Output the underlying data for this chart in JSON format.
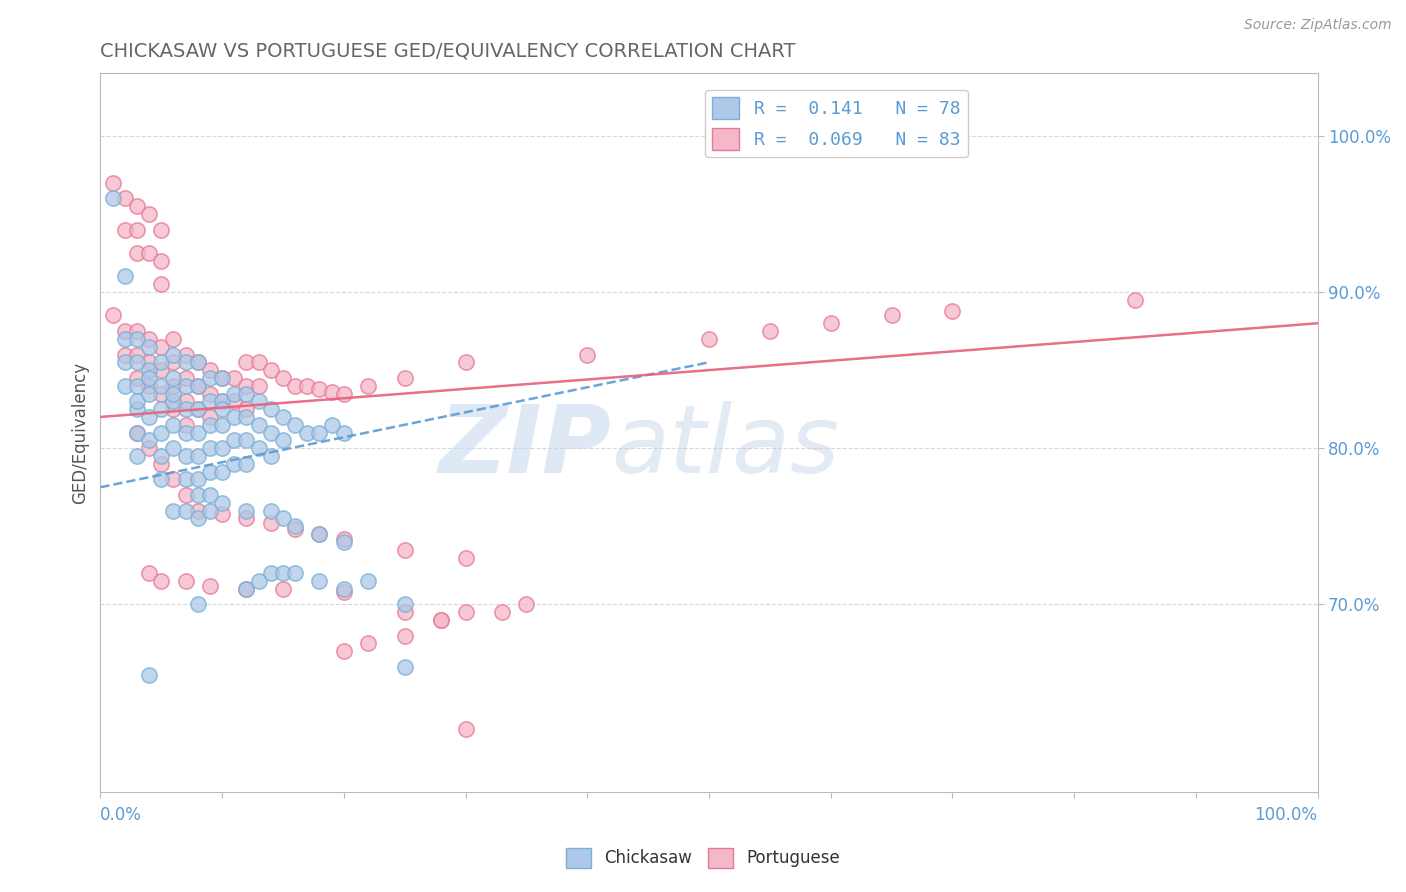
{
  "title": "CHICKASAW VS PORTUGUESE GED/EQUIVALENCY CORRELATION CHART",
  "source": "Source: ZipAtlas.com",
  "ylabel": "GED/Equivalency",
  "ytick_labels_right": [
    "100.0%",
    "90.0%",
    "80.0%",
    "70.0%"
  ],
  "ytick_values": [
    1.0,
    0.9,
    0.8,
    0.7
  ],
  "xlim": [
    0.0,
    1.0
  ],
  "ylim": [
    0.58,
    1.04
  ],
  "legend_text1": "R =  0.141   N = 78",
  "legend_text2": "R =  0.069   N = 83",
  "chickasaw_color": "#adc8e8",
  "chickasaw_edge": "#7bafd4",
  "portuguese_color": "#f5b8c8",
  "portuguese_edge": "#e87898",
  "trendline_chick_color": "#5b9bd5",
  "trendline_port_color": "#e8607a",
  "background_color": "#ffffff",
  "grid_color": "#d8d8d8",
  "watermark_zip": "ZIP",
  "watermark_atlas": "atlas",
  "title_color": "#666666",
  "axis_label_color": "#5b9bd5",
  "legend_color": "#5b9bd5",
  "chick_trend_x": [
    0.0,
    0.5
  ],
  "chick_trend_y": [
    0.775,
    0.855
  ],
  "port_trend_x": [
    0.0,
    1.0
  ],
  "port_trend_y": [
    0.82,
    0.88
  ],
  "chickasaw_scatter": [
    [
      0.01,
      0.96
    ],
    [
      0.02,
      0.91
    ],
    [
      0.02,
      0.87
    ],
    [
      0.02,
      0.855
    ],
    [
      0.02,
      0.84
    ],
    [
      0.03,
      0.87
    ],
    [
      0.03,
      0.855
    ],
    [
      0.03,
      0.84
    ],
    [
      0.03,
      0.825
    ],
    [
      0.03,
      0.81
    ],
    [
      0.03,
      0.795
    ],
    [
      0.03,
      0.83
    ],
    [
      0.04,
      0.865
    ],
    [
      0.04,
      0.85
    ],
    [
      0.04,
      0.835
    ],
    [
      0.04,
      0.82
    ],
    [
      0.04,
      0.805
    ],
    [
      0.04,
      0.845
    ],
    [
      0.05,
      0.855
    ],
    [
      0.05,
      0.84
    ],
    [
      0.05,
      0.825
    ],
    [
      0.05,
      0.81
    ],
    [
      0.05,
      0.795
    ],
    [
      0.05,
      0.78
    ],
    [
      0.06,
      0.86
    ],
    [
      0.06,
      0.845
    ],
    [
      0.06,
      0.83
    ],
    [
      0.06,
      0.815
    ],
    [
      0.06,
      0.8
    ],
    [
      0.06,
      0.835
    ],
    [
      0.07,
      0.855
    ],
    [
      0.07,
      0.84
    ],
    [
      0.07,
      0.825
    ],
    [
      0.07,
      0.81
    ],
    [
      0.07,
      0.795
    ],
    [
      0.07,
      0.78
    ],
    [
      0.08,
      0.855
    ],
    [
      0.08,
      0.84
    ],
    [
      0.08,
      0.825
    ],
    [
      0.08,
      0.81
    ],
    [
      0.08,
      0.795
    ],
    [
      0.08,
      0.78
    ],
    [
      0.08,
      0.77
    ],
    [
      0.09,
      0.845
    ],
    [
      0.09,
      0.83
    ],
    [
      0.09,
      0.815
    ],
    [
      0.09,
      0.8
    ],
    [
      0.09,
      0.785
    ],
    [
      0.09,
      0.77
    ],
    [
      0.1,
      0.845
    ],
    [
      0.1,
      0.83
    ],
    [
      0.1,
      0.815
    ],
    [
      0.1,
      0.8
    ],
    [
      0.1,
      0.785
    ],
    [
      0.1,
      0.825
    ],
    [
      0.11,
      0.835
    ],
    [
      0.11,
      0.82
    ],
    [
      0.11,
      0.805
    ],
    [
      0.11,
      0.79
    ],
    [
      0.12,
      0.835
    ],
    [
      0.12,
      0.82
    ],
    [
      0.12,
      0.805
    ],
    [
      0.12,
      0.79
    ],
    [
      0.13,
      0.83
    ],
    [
      0.13,
      0.815
    ],
    [
      0.13,
      0.8
    ],
    [
      0.14,
      0.825
    ],
    [
      0.14,
      0.81
    ],
    [
      0.14,
      0.795
    ],
    [
      0.15,
      0.82
    ],
    [
      0.15,
      0.805
    ],
    [
      0.16,
      0.815
    ],
    [
      0.17,
      0.81
    ],
    [
      0.18,
      0.81
    ],
    [
      0.19,
      0.815
    ],
    [
      0.2,
      0.81
    ],
    [
      0.06,
      0.76
    ],
    [
      0.07,
      0.76
    ],
    [
      0.08,
      0.755
    ],
    [
      0.09,
      0.76
    ],
    [
      0.1,
      0.765
    ],
    [
      0.12,
      0.76
    ],
    [
      0.14,
      0.76
    ],
    [
      0.15,
      0.755
    ],
    [
      0.16,
      0.75
    ],
    [
      0.18,
      0.745
    ],
    [
      0.2,
      0.74
    ],
    [
      0.12,
      0.71
    ],
    [
      0.13,
      0.715
    ],
    [
      0.14,
      0.72
    ],
    [
      0.15,
      0.72
    ],
    [
      0.16,
      0.72
    ],
    [
      0.18,
      0.715
    ],
    [
      0.2,
      0.71
    ],
    [
      0.22,
      0.715
    ],
    [
      0.08,
      0.7
    ],
    [
      0.25,
      0.7
    ],
    [
      0.04,
      0.655
    ],
    [
      0.25,
      0.66
    ]
  ],
  "portuguese_scatter": [
    [
      0.01,
      0.97
    ],
    [
      0.02,
      0.96
    ],
    [
      0.02,
      0.94
    ],
    [
      0.03,
      0.955
    ],
    [
      0.03,
      0.94
    ],
    [
      0.03,
      0.925
    ],
    [
      0.04,
      0.95
    ],
    [
      0.04,
      0.925
    ],
    [
      0.05,
      0.94
    ],
    [
      0.05,
      0.92
    ],
    [
      0.05,
      0.905
    ],
    [
      0.01,
      0.885
    ],
    [
      0.02,
      0.875
    ],
    [
      0.02,
      0.86
    ],
    [
      0.03,
      0.875
    ],
    [
      0.03,
      0.86
    ],
    [
      0.03,
      0.845
    ],
    [
      0.04,
      0.87
    ],
    [
      0.04,
      0.855
    ],
    [
      0.04,
      0.84
    ],
    [
      0.05,
      0.865
    ],
    [
      0.05,
      0.85
    ],
    [
      0.05,
      0.835
    ],
    [
      0.06,
      0.87
    ],
    [
      0.06,
      0.855
    ],
    [
      0.06,
      0.84
    ],
    [
      0.06,
      0.825
    ],
    [
      0.07,
      0.86
    ],
    [
      0.07,
      0.845
    ],
    [
      0.07,
      0.83
    ],
    [
      0.07,
      0.815
    ],
    [
      0.08,
      0.855
    ],
    [
      0.08,
      0.84
    ],
    [
      0.08,
      0.825
    ],
    [
      0.09,
      0.85
    ],
    [
      0.09,
      0.835
    ],
    [
      0.09,
      0.82
    ],
    [
      0.1,
      0.845
    ],
    [
      0.1,
      0.83
    ],
    [
      0.11,
      0.845
    ],
    [
      0.11,
      0.83
    ],
    [
      0.12,
      0.84
    ],
    [
      0.12,
      0.825
    ],
    [
      0.12,
      0.855
    ],
    [
      0.13,
      0.84
    ],
    [
      0.13,
      0.855
    ],
    [
      0.14,
      0.85
    ],
    [
      0.15,
      0.845
    ],
    [
      0.16,
      0.84
    ],
    [
      0.17,
      0.84
    ],
    [
      0.18,
      0.838
    ],
    [
      0.19,
      0.836
    ],
    [
      0.2,
      0.835
    ],
    [
      0.22,
      0.84
    ],
    [
      0.25,
      0.845
    ],
    [
      0.3,
      0.855
    ],
    [
      0.4,
      0.86
    ],
    [
      0.5,
      0.87
    ],
    [
      0.55,
      0.875
    ],
    [
      0.6,
      0.88
    ],
    [
      0.65,
      0.885
    ],
    [
      0.7,
      0.888
    ],
    [
      0.85,
      0.895
    ],
    [
      0.03,
      0.81
    ],
    [
      0.04,
      0.8
    ],
    [
      0.05,
      0.79
    ],
    [
      0.06,
      0.78
    ],
    [
      0.07,
      0.77
    ],
    [
      0.08,
      0.76
    ],
    [
      0.1,
      0.758
    ],
    [
      0.12,
      0.755
    ],
    [
      0.14,
      0.752
    ],
    [
      0.16,
      0.748
    ],
    [
      0.18,
      0.745
    ],
    [
      0.2,
      0.742
    ],
    [
      0.25,
      0.735
    ],
    [
      0.3,
      0.73
    ],
    [
      0.04,
      0.72
    ],
    [
      0.05,
      0.715
    ],
    [
      0.07,
      0.715
    ],
    [
      0.09,
      0.712
    ],
    [
      0.12,
      0.71
    ],
    [
      0.15,
      0.71
    ],
    [
      0.2,
      0.708
    ],
    [
      0.25,
      0.695
    ],
    [
      0.28,
      0.69
    ],
    [
      0.3,
      0.695
    ],
    [
      0.33,
      0.695
    ],
    [
      0.35,
      0.7
    ],
    [
      0.2,
      0.67
    ],
    [
      0.22,
      0.675
    ],
    [
      0.25,
      0.68
    ],
    [
      0.28,
      0.69
    ],
    [
      0.3,
      0.62
    ]
  ]
}
